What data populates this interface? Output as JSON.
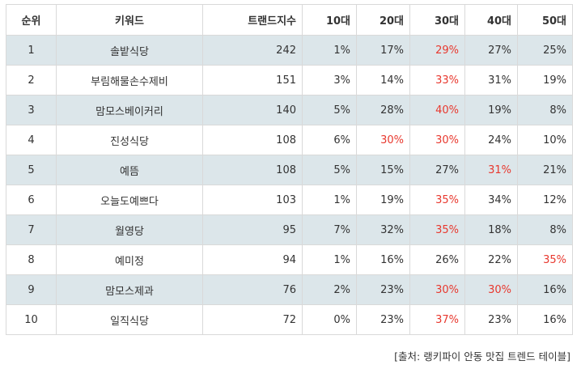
{
  "highlight_color": "#e8382e",
  "headers": [
    "순위",
    "키워드",
    "트랜드지수",
    "10대",
    "20대",
    "30대",
    "40대",
    "50대"
  ],
  "rows": [
    {
      "rank": "1",
      "keyword": "솔밭식당",
      "index": "242",
      "age10": "1%",
      "age20": "17%",
      "age30": "29%",
      "age40": "27%",
      "age50": "25%",
      "highlight": [
        "age30"
      ]
    },
    {
      "rank": "2",
      "keyword": "부림해물손수제비",
      "index": "151",
      "age10": "3%",
      "age20": "14%",
      "age30": "33%",
      "age40": "31%",
      "age50": "19%",
      "highlight": [
        "age30"
      ]
    },
    {
      "rank": "3",
      "keyword": "맘모스베이커리",
      "index": "140",
      "age10": "5%",
      "age20": "28%",
      "age30": "40%",
      "age40": "19%",
      "age50": "8%",
      "highlight": [
        "age30"
      ]
    },
    {
      "rank": "4",
      "keyword": "진성식당",
      "index": "108",
      "age10": "6%",
      "age20": "30%",
      "age30": "30%",
      "age40": "24%",
      "age50": "10%",
      "highlight": [
        "age20",
        "age30"
      ]
    },
    {
      "rank": "5",
      "keyword": "예뜸",
      "index": "108",
      "age10": "5%",
      "age20": "15%",
      "age30": "27%",
      "age40": "31%",
      "age50": "21%",
      "highlight": [
        "age40"
      ]
    },
    {
      "rank": "6",
      "keyword": "오늘도예쁘다",
      "index": "103",
      "age10": "1%",
      "age20": "19%",
      "age30": "35%",
      "age40": "34%",
      "age50": "12%",
      "highlight": [
        "age30"
      ]
    },
    {
      "rank": "7",
      "keyword": "월영당",
      "index": "95",
      "age10": "7%",
      "age20": "32%",
      "age30": "35%",
      "age40": "18%",
      "age50": "8%",
      "highlight": [
        "age30"
      ]
    },
    {
      "rank": "8",
      "keyword": "예미정",
      "index": "94",
      "age10": "1%",
      "age20": "16%",
      "age30": "26%",
      "age40": "22%",
      "age50": "35%",
      "highlight": [
        "age50"
      ]
    },
    {
      "rank": "9",
      "keyword": "맘모스제과",
      "index": "76",
      "age10": "2%",
      "age20": "23%",
      "age30": "30%",
      "age40": "30%",
      "age50": "16%",
      "highlight": [
        "age30",
        "age40"
      ]
    },
    {
      "rank": "10",
      "keyword": "일직식당",
      "index": "72",
      "age10": "0%",
      "age20": "23%",
      "age30": "37%",
      "age40": "23%",
      "age50": "16%",
      "highlight": [
        "age30"
      ]
    }
  ],
  "source": "[출처: 랭키파이 안동 맛집 트렌드 테이블]"
}
